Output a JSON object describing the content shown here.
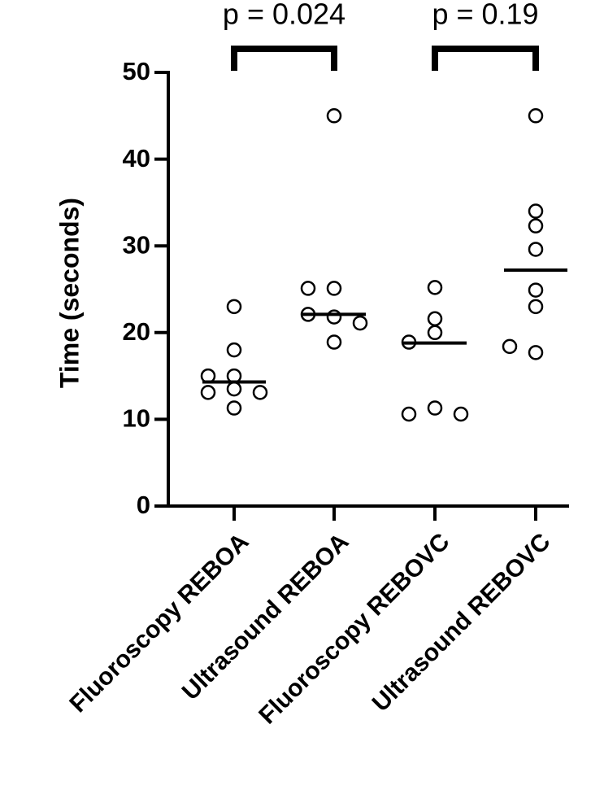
{
  "chart_data": {
    "type": "dot",
    "y_label": "Time (seconds)",
    "ylim": [
      0,
      50
    ],
    "yticks": [
      0,
      10,
      20,
      30,
      40,
      50
    ],
    "color": "#000000",
    "groups": [
      {
        "name": "Fluoroscopy REBOA",
        "values": [
          23,
          18,
          15,
          15,
          13.5,
          13.1,
          13.1,
          11.3
        ],
        "median": 14.3
      },
      {
        "name": "Ultrasound REBOA",
        "values": [
          45,
          25.1,
          25.1,
          21.8,
          22.1,
          21.1,
          18.9
        ],
        "median": 22.1
      },
      {
        "name": "Fluoroscopy REBOVC",
        "values": [
          25.2,
          21.6,
          20,
          18.9,
          11.3,
          10.6,
          10.6
        ],
        "median": 18.8
      },
      {
        "name": "Ultrasound REBOVC",
        "values": [
          45,
          34,
          32.3,
          29.6,
          24.9,
          23,
          17.7,
          18.4
        ],
        "median": 27.2
      }
    ],
    "annotations": [
      "p = 0.024",
      "p = 0.19"
    ]
  }
}
